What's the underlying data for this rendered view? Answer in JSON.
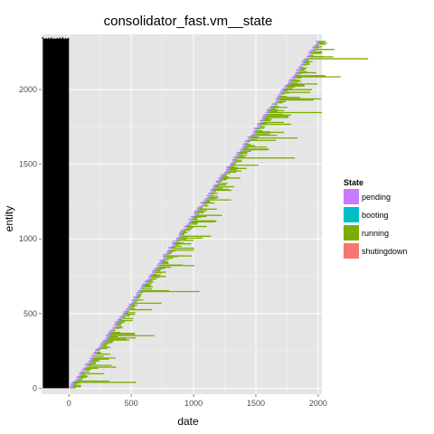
{
  "chart_data": {
    "type": "bar",
    "orientation": "horizontal-segments",
    "title": "consolidator_fast.vm__state",
    "xlabel": "date",
    "ylabel": "entity",
    "xlim": [
      -220,
      2030
    ],
    "ylim": [
      -40,
      2370
    ],
    "x_ticks": [
      0,
      500,
      1000,
      1500,
      2000
    ],
    "y_ticks": [
      0,
      500,
      1000,
      1500,
      2000
    ],
    "grid": true,
    "legend": {
      "title": "State",
      "position": "right",
      "entries": [
        {
          "name": "pending",
          "color": "#c77cff"
        },
        {
          "name": "booting",
          "color": "#00bfc4"
        },
        {
          "name": "running",
          "color": "#7cae00"
        },
        {
          "name": "shutingdown",
          "color": "#f8766d"
        }
      ]
    },
    "background_band": {
      "x": [
        -210,
        0
      ],
      "y": [
        0,
        2340
      ],
      "color": "#000000"
    },
    "series": [
      {
        "name": "pending",
        "color": "#c77cff",
        "start_x": [
          0,
          2000
        ],
        "start_y": [
          0,
          2330
        ],
        "duration": 20
      },
      {
        "name": "booting",
        "color": "#00bfc4",
        "start_x": [
          0,
          2000
        ],
        "start_y": [
          0,
          2330
        ],
        "duration": 5
      },
      {
        "name": "running",
        "color": "#7cae00",
        "start_x": [
          10,
          2010
        ],
        "start_y": [
          0,
          2330
        ],
        "duration_range": [
          10,
          500
        ]
      },
      {
        "name": "shutingdown",
        "color": "#f8766d",
        "start_x": [
          0,
          2000
        ],
        "start_y": [
          0,
          2330
        ],
        "duration": 2
      }
    ]
  }
}
